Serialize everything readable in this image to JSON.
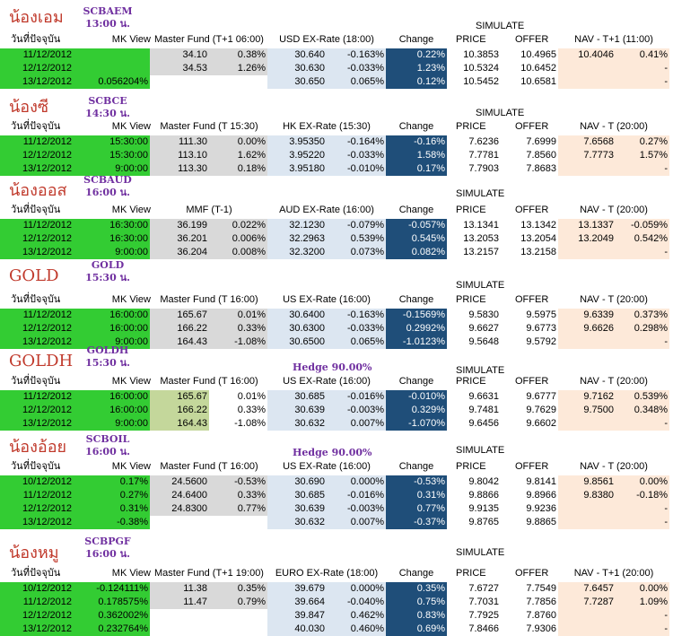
{
  "colors": {
    "nickname": "#c0392b",
    "fund_code": "#7030a0",
    "green_block": "#33cc33",
    "gray_block": "#d9d9d9",
    "olive_block": "#c4d79b",
    "fx_block": "#dce6f1",
    "change_block": "#1f4e79",
    "nav_block": "#fde9d9"
  },
  "sections": [
    {
      "nick": "น้องเอม",
      "code": "SCBAEM",
      "time": "13:00 น.",
      "simulate": "SIMULATE",
      "hedge": "",
      "headers": {
        "date": "วันที่ปัจจุบัน",
        "mk": "MK View",
        "master": "Master Fund (T+1 06:00)",
        "fx": "USD EX-Rate (18:00)",
        "change": "Change",
        "price": "PRICE",
        "offer": "OFFER",
        "nav": "NAV - T+1 (11:00)"
      },
      "rows": [
        {
          "date": "11/12/2012",
          "mk": "",
          "m1": "34.10",
          "m2": "0.38%",
          "fx1": "30.640",
          "fx2": "-0.163%",
          "chg": "0.22%",
          "price": "10.3853",
          "offer": "10.4965",
          "nav1": "10.4046",
          "nav2": "0.41%"
        },
        {
          "date": "12/12/2012",
          "mk": "",
          "m1": "34.53",
          "m2": "1.26%",
          "fx1": "30.630",
          "fx2": "-0.033%",
          "chg": "1.23%",
          "price": "10.5324",
          "offer": "10.6452",
          "nav1": "",
          "nav2": "-"
        },
        {
          "date": "13/12/2012",
          "mk": "0.056204%",
          "m1": "",
          "m2": "",
          "fx1": "30.650",
          "fx2": "0.065%",
          "chg": "0.12%",
          "price": "10.5452",
          "offer": "10.6581",
          "nav1": "",
          "nav2": "-"
        }
      ]
    },
    {
      "nick": "น้องซี",
      "code": "SCBCE",
      "time": "14:30 น.",
      "simulate": "SIMULATE",
      "hedge": "",
      "headers": {
        "date": "วันที่ปัจจุบัน",
        "mk": "MK View",
        "master": "Master Fund (T 15:30)",
        "fx": "HK EX-Rate (15:30)",
        "change": "Change",
        "price": "PRICE",
        "offer": "OFFER",
        "nav": "NAV - T (20:00)"
      },
      "rows": [
        {
          "date": "11/12/2012",
          "mk": "15:30:00",
          "m1": "111.30",
          "m2": "0.00%",
          "fx1": "3.95350",
          "fx2": "-0.164%",
          "chg": "-0.16%",
          "price": "7.6236",
          "offer": "7.6999",
          "nav1": "7.6568",
          "nav2": "0.27%"
        },
        {
          "date": "12/12/2012",
          "mk": "15:30:00",
          "m1": "113.10",
          "m2": "1.62%",
          "fx1": "3.95220",
          "fx2": "-0.033%",
          "chg": "1.58%",
          "price": "7.7781",
          "offer": "7.8560",
          "nav1": "7.7773",
          "nav2": "1.57%"
        },
        {
          "date": "13/12/2012",
          "mk": "9:00:00",
          "m1": "113.30",
          "m2": "0.18%",
          "fx1": "3.95180",
          "fx2": "-0.010%",
          "chg": "0.17%",
          "price": "7.7903",
          "offer": "7.8683",
          "nav1": "",
          "nav2": "-"
        }
      ]
    },
    {
      "nick": "น้องออส",
      "code": "SCBAUD",
      "time": "16:00 น.",
      "simulate": "SIMULATE",
      "hedge": "",
      "headers": {
        "date": "วันที่ปัจจุบัน",
        "mk": "MK View",
        "master": "MMF (T-1)",
        "fx": "AUD EX-Rate (16:00)",
        "change": "Change",
        "price": "PRICE",
        "offer": "OFFER",
        "nav": "NAV - T (20:00)"
      },
      "rows": [
        {
          "date": "11/12/2012",
          "mk": "16:30:00",
          "m1": "36.199",
          "m2": "0.022%",
          "fx1": "32.1230",
          "fx2": "-0.079%",
          "chg": "-0.057%",
          "price": "13.1341",
          "offer": "13.1342",
          "nav1": "13.1337",
          "nav2": "-0.059%"
        },
        {
          "date": "12/12/2012",
          "mk": "16:30:00",
          "m1": "36.201",
          "m2": "0.006%",
          "fx1": "32.2963",
          "fx2": "0.539%",
          "chg": "0.545%",
          "price": "13.2053",
          "offer": "13.2054",
          "nav1": "13.2049",
          "nav2": "0.542%"
        },
        {
          "date": "13/12/2012",
          "mk": "9:00:00",
          "m1": "36.204",
          "m2": "0.008%",
          "fx1": "32.3200",
          "fx2": "0.073%",
          "chg": "0.082%",
          "price": "13.2157",
          "offer": "13.2158",
          "nav1": "",
          "nav2": "-"
        }
      ]
    },
    {
      "nick": "GOLD",
      "code": "GOLD",
      "time": "15:30 น.",
      "simulate": "SIMULATE",
      "hedge": "",
      "headers": {
        "date": "วันที่ปัจจุบัน",
        "mk": "MK View",
        "master": "Master Fund (T 16:00)",
        "fx": "US EX-Rate (16:00)",
        "change": "Change",
        "price": "PRICE",
        "offer": "OFFER",
        "nav": "NAV - T (20:00)"
      },
      "rows": [
        {
          "date": "11/12/2012",
          "mk": "16:00:00",
          "m1": "165.67",
          "m2": "0.01%",
          "fx1": "30.6400",
          "fx2": "-0.163%",
          "chg": "-0.1569%",
          "price": "9.5830",
          "offer": "9.5975",
          "nav1": "9.6339",
          "nav2": "0.373%"
        },
        {
          "date": "12/12/2012",
          "mk": "16:00:00",
          "m1": "166.22",
          "m2": "0.33%",
          "fx1": "30.6300",
          "fx2": "-0.033%",
          "chg": "0.2992%",
          "price": "9.6627",
          "offer": "9.6773",
          "nav1": "9.6626",
          "nav2": "0.298%"
        },
        {
          "date": "13/12/2012",
          "mk": "9:00:00",
          "m1": "164.43",
          "m2": "-1.08%",
          "fx1": "30.6500",
          "fx2": "0.065%",
          "chg": "-1.0123%",
          "price": "9.5648",
          "offer": "9.5792",
          "nav1": "",
          "nav2": "-"
        }
      ]
    },
    {
      "nick": "GOLDH",
      "code": "GOLDH",
      "time": "15:30 น.",
      "simulate": "SIMULATE",
      "hedge": "Hedge 90.00%",
      "headers": {
        "date": "วันที่ปัจจุบัน",
        "mk": "MK View",
        "master": "Master Fund (T 16:00)",
        "fx": "US EX-Rate (16:00)",
        "change": "Change",
        "price": "PRICE",
        "offer": "OFFER",
        "nav": "NAV - T (20:00)"
      },
      "rows": [
        {
          "date": "11/12/2012",
          "mk": "16:00:00",
          "m1": "165.67",
          "m2": "0.01%",
          "fx1": "30.685",
          "fx2": "-0.016%",
          "chg": "-0.010%",
          "price": "9.6631",
          "offer": "9.6777",
          "nav1": "9.7162",
          "nav2": "0.539%"
        },
        {
          "date": "12/12/2012",
          "mk": "16:00:00",
          "m1": "166.22",
          "m2": "0.33%",
          "fx1": "30.639",
          "fx2": "-0.003%",
          "chg": "0.329%",
          "price": "9.7481",
          "offer": "9.7629",
          "nav1": "9.7500",
          "nav2": "0.348%"
        },
        {
          "date": "13/12/2012",
          "mk": "9:00:00",
          "m1": "164.43",
          "m2": "-1.08%",
          "fx1": "30.632",
          "fx2": "0.007%",
          "chg": "-1.070%",
          "price": "9.6456",
          "offer": "9.6602",
          "nav1": "",
          "nav2": "-"
        }
      ]
    },
    {
      "nick": "น้องอ้อย",
      "code": "SCBOIL",
      "time": "16:00 น.",
      "simulate": "SIMULATE",
      "hedge": "Hedge 90.00%",
      "headers": {
        "date": "วันที่ปัจจุบัน",
        "mk": "MK View",
        "master": "Master Fund (T 16:00)",
        "fx": "US EX-Rate (16:00)",
        "change": "Change",
        "price": "PRICE",
        "offer": "OFFER",
        "nav": "NAV - T (20:00)"
      },
      "rows": [
        {
          "date": "10/12/2012",
          "mk": "0.17%",
          "m1": "24.5600",
          "m2": "-0.53%",
          "fx1": "30.690",
          "fx2": "0.000%",
          "chg": "-0.53%",
          "price": "9.8042",
          "offer": "9.8141",
          "nav1": "9.8561",
          "nav2": "0.00%"
        },
        {
          "date": "11/12/2012",
          "mk": "0.27%",
          "m1": "24.6400",
          "m2": "0.33%",
          "fx1": "30.685",
          "fx2": "-0.016%",
          "chg": "0.31%",
          "price": "9.8866",
          "offer": "9.8966",
          "nav1": "9.8380",
          "nav2": "-0.18%"
        },
        {
          "date": "12/12/2012",
          "mk": "0.31%",
          "m1": "24.8300",
          "m2": "0.77%",
          "fx1": "30.639",
          "fx2": "-0.003%",
          "chg": "0.77%",
          "price": "9.9135",
          "offer": "9.9236",
          "nav1": "",
          "nav2": "-"
        },
        {
          "date": "13/12/2012",
          "mk": "-0.38%",
          "m1": "",
          "m2": "",
          "fx1": "30.632",
          "fx2": "0.007%",
          "chg": "-0.37%",
          "price": "9.8765",
          "offer": "9.8865",
          "nav1": "",
          "nav2": "-"
        }
      ]
    },
    {
      "nick": "น้องหมู",
      "code": "SCBPGF",
      "time": "16:00 น.",
      "simulate": "SIMULATE",
      "hedge": "",
      "headers": {
        "date": "วันที่ปัจจุบัน",
        "mk": "MK View",
        "master": "Master Fund (T+1 19:00)",
        "fx": "EURO EX-Rate (18:00)",
        "change": "Change",
        "price": "PRICE",
        "offer": "OFFER",
        "nav": "NAV - T+1 (20:00)"
      },
      "rows": [
        {
          "date": "10/12/2012",
          "mk": "-0.124111%",
          "m1": "11.38",
          "m2": "0.35%",
          "fx1": "39.679",
          "fx2": "0.000%",
          "chg": "0.35%",
          "price": "7.6727",
          "offer": "7.7549",
          "nav1": "7.6457",
          "nav2": "0.00%"
        },
        {
          "date": "11/12/2012",
          "mk": "0.178575%",
          "m1": "11.47",
          "m2": "0.79%",
          "fx1": "39.664",
          "fx2": "-0.040%",
          "chg": "0.75%",
          "price": "7.7031",
          "offer": "7.7856",
          "nav1": "7.7287",
          "nav2": "1.09%"
        },
        {
          "date": "12/12/2012",
          "mk": "0.362002%",
          "m1": "",
          "m2": "",
          "fx1": "39.847",
          "fx2": "0.462%",
          "chg": "0.83%",
          "price": "7.7925",
          "offer": "7.8760",
          "nav1": "",
          "nav2": "-"
        },
        {
          "date": "13/12/2012",
          "mk": "0.232764%",
          "m1": "",
          "m2": "",
          "fx1": "40.030",
          "fx2": "0.460%",
          "chg": "0.69%",
          "price": "7.8466",
          "offer": "7.9306",
          "nav1": "",
          "nav2": "-"
        }
      ]
    }
  ]
}
